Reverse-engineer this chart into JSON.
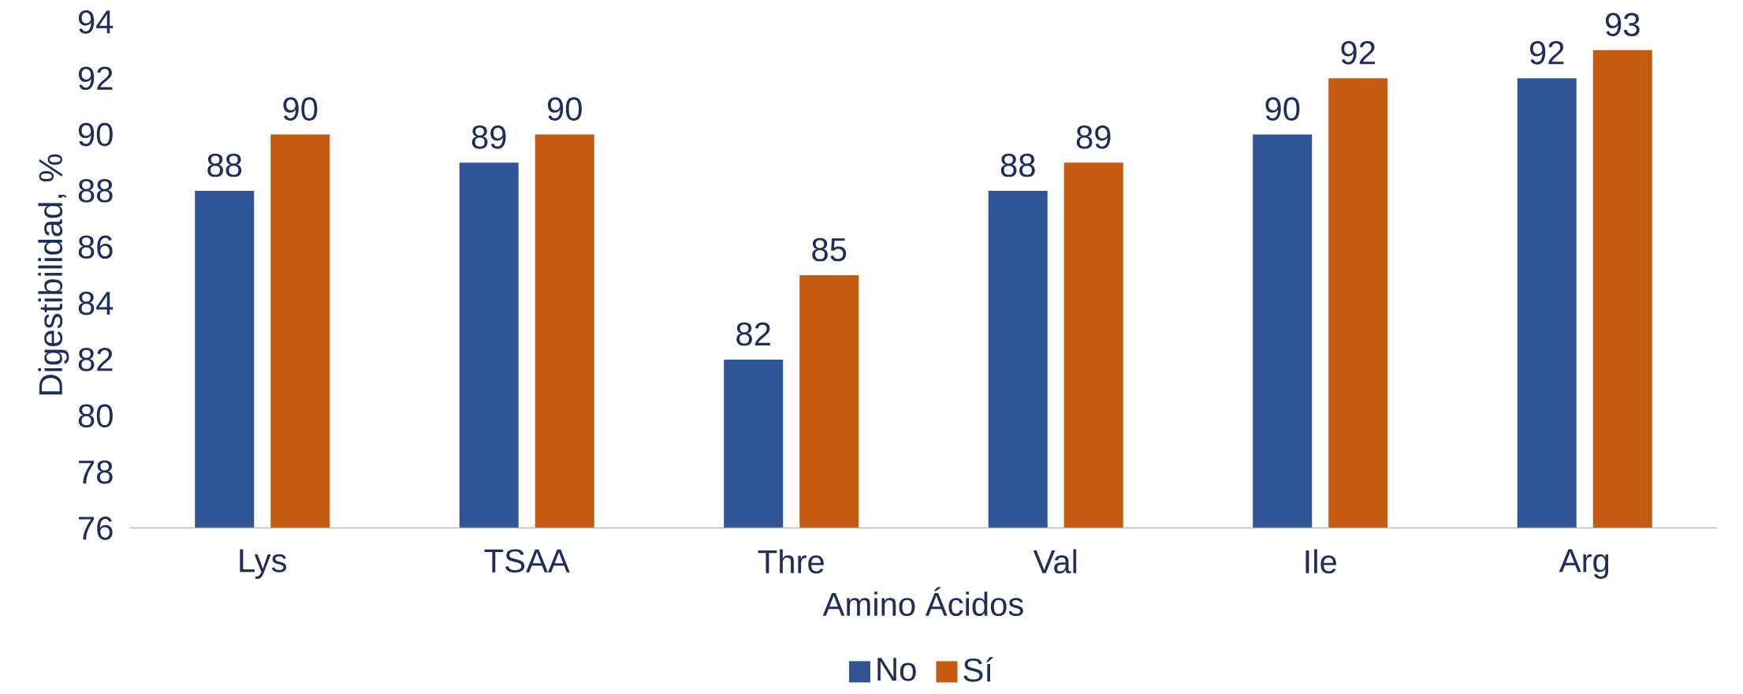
{
  "chart_data": {
    "type": "bar",
    "xlabel": "Amino Ácidos",
    "ylabel": "Digestibilidad, %",
    "categories": [
      "Lys",
      "TSAA",
      "Thre",
      "Val",
      "Ile",
      "Arg"
    ],
    "series": [
      {
        "name": "No",
        "color": "#2f5597",
        "values": [
          88,
          89,
          82,
          88,
          90,
          92
        ]
      },
      {
        "name": "Sí",
        "color": "#c55a11",
        "values": [
          90,
          90,
          85,
          89,
          92,
          93
        ]
      }
    ],
    "ylim": [
      76,
      94
    ],
    "yticks": [
      76,
      78,
      80,
      82,
      84,
      86,
      88,
      90,
      92,
      94
    ],
    "data_labels": true,
    "legend": "bottom",
    "grid": false
  }
}
